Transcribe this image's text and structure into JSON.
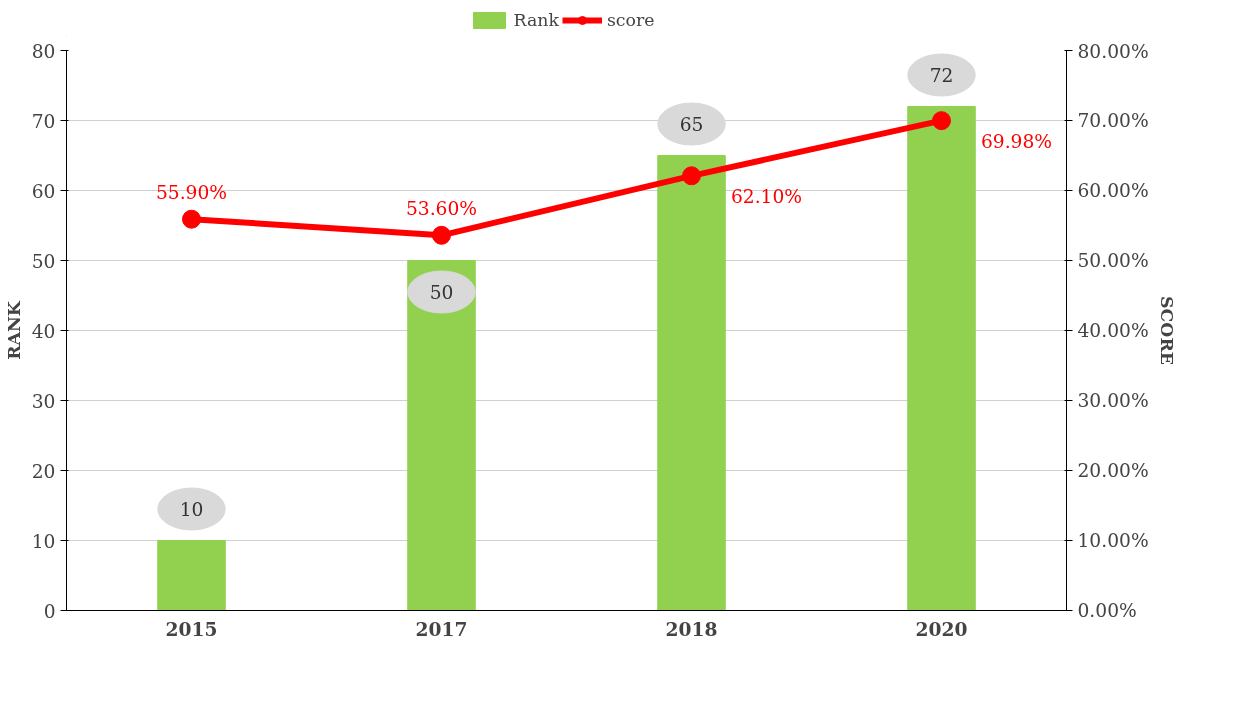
{
  "chart_data": {
    "type": "bar",
    "categories": [
      "2015",
      "2017",
      "2018",
      "2020"
    ],
    "series": [
      {
        "name": "Rank",
        "color": "#92d050",
        "values": [
          10,
          50,
          65,
          72
        ],
        "value_labels": [
          "10",
          "50",
          "65",
          "72"
        ]
      },
      {
        "name": "score",
        "type": "line",
        "axis": "y2",
        "color": "#ff0000",
        "values": [
          55.9,
          53.6,
          62.1,
          69.98
        ],
        "value_labels": [
          "55.90%",
          "53.60%",
          "62.10%",
          "69.98%"
        ],
        "marker": "circle",
        "line_style": "solid"
      }
    ],
    "ylabel": "RANK",
    "y2label": "SCORE",
    "ylim": [
      0,
      80
    ],
    "yticks": [
      0,
      10,
      20,
      30,
      40,
      50,
      60,
      70,
      80
    ],
    "y2lim": [
      0,
      80
    ],
    "y2ticks": [
      {
        "value": 0,
        "label": "0.00%"
      },
      {
        "value": 10,
        "label": "10.00%"
      },
      {
        "value": 20,
        "label": "20.00%"
      },
      {
        "value": 30,
        "label": "30.00%"
      },
      {
        "value": 40,
        "label": "40.00%"
      },
      {
        "value": 50,
        "label": "50.00%"
      },
      {
        "value": 60,
        "label": "60.00%"
      },
      {
        "value": 70,
        "label": "70.00%"
      },
      {
        "value": 80,
        "label": "80.00%"
      }
    ],
    "grid": "y",
    "legend": "top"
  }
}
